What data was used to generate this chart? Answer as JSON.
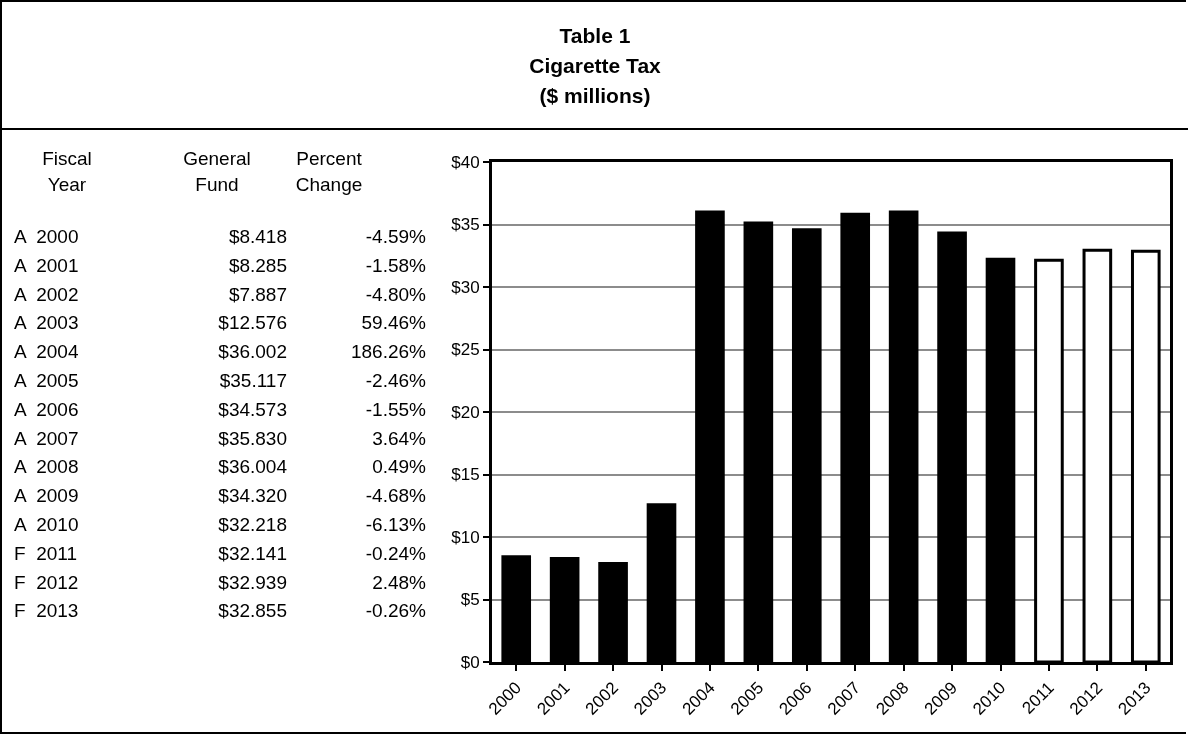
{
  "chart_data": [
    {
      "type": "other",
      "title": "Table 1\nCigarette Tax\n($ millions)",
      "annotations": [
        "Fiscal Year",
        "General Fund",
        "Percent Change",
        "A  2000",
        "$8.418",
        "-4.59%",
        "A  2001",
        "$8.285",
        "-1.58%",
        "A  2002",
        "$7.887",
        "-4.80%",
        "A  2003",
        "$12.576",
        "59.46%",
        "A  2004",
        "$36.002",
        "186.26%",
        "A  2005",
        "$35.117",
        "-2.46%",
        "A  2006",
        "$34.573",
        "-1.55%",
        "A  2007",
        "$35.830",
        "3.64%",
        "A  2008",
        "$36.004",
        "0.49%",
        "A  2009",
        "$34.320",
        "-4.68%",
        "A  2010",
        "$32.218",
        "-6.13%",
        "F  2011",
        "$32.141",
        "-0.24%",
        "F  2012",
        "$32.939",
        "2.48%",
        "F  2013",
        "$32.855",
        "-0.26%"
      ]
    },
    {
      "type": "bar",
      "categories": [
        "2000",
        "2001",
        "2002",
        "2003",
        "2004",
        "2005",
        "2006",
        "2007",
        "2008",
        "2009",
        "2010",
        "2011",
        "2012",
        "2013"
      ],
      "values": [
        8.418,
        8.285,
        7.887,
        12.576,
        36.002,
        35.117,
        34.573,
        35.83,
        36.004,
        34.32,
        32.218,
        32.141,
        32.939,
        32.855
      ],
      "colors": [
        "#000000",
        "#000000",
        "#000000",
        "#000000",
        "#000000",
        "#000000",
        "#000000",
        "#000000",
        "#000000",
        "#000000",
        "#000000",
        "#ffffff",
        "#ffffff",
        "#ffffff"
      ],
      "ylim": [
        0,
        40
      ],
      "yticks": [
        {
          "value": 0,
          "label": "$0"
        },
        {
          "value": 5,
          "label": "$5"
        },
        {
          "value": 10,
          "label": "$10"
        },
        {
          "value": 15,
          "label": "$15"
        },
        {
          "value": 20,
          "label": "$20"
        },
        {
          "value": 25,
          "label": "$25"
        },
        {
          "value": 30,
          "label": "$30"
        },
        {
          "value": 35,
          "label": "$35"
        },
        {
          "value": 40,
          "label": "$40"
        }
      ],
      "grid": "y"
    }
  ]
}
